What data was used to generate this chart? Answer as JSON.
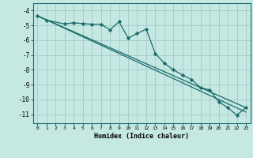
{
  "xlabel": "Humidex (Indice chaleur)",
  "xlim": [
    -0.5,
    23.5
  ],
  "ylim": [
    -11.6,
    -3.5
  ],
  "yticks": [
    -4,
    -5,
    -6,
    -7,
    -8,
    -9,
    -10,
    -11
  ],
  "xticks": [
    0,
    1,
    2,
    3,
    4,
    5,
    6,
    7,
    8,
    9,
    10,
    11,
    12,
    13,
    14,
    15,
    16,
    17,
    18,
    19,
    20,
    21,
    22,
    23
  ],
  "bg_color": "#c5e8e3",
  "grid_color": "#a8cec9",
  "line_color": "#1a6b6b",
  "line1_x": [
    0,
    1,
    3,
    4,
    5,
    6,
    7,
    8,
    9,
    10,
    11,
    12,
    13,
    14,
    15,
    16,
    17,
    18,
    19,
    20,
    21,
    22,
    23
  ],
  "line1_y": [
    -4.35,
    -4.65,
    -4.9,
    -4.82,
    -4.88,
    -4.92,
    -4.92,
    -5.3,
    -4.75,
    -5.85,
    -5.55,
    -5.25,
    -6.9,
    -7.55,
    -8.0,
    -8.35,
    -8.65,
    -9.2,
    -9.35,
    -10.15,
    -10.55,
    -11.05,
    -10.55
  ],
  "line2_x": [
    0,
    23
  ],
  "line2_y": [
    -4.35,
    -10.55
  ],
  "line3_x": [
    0,
    23
  ],
  "line3_y": [
    -4.35,
    -10.85
  ]
}
